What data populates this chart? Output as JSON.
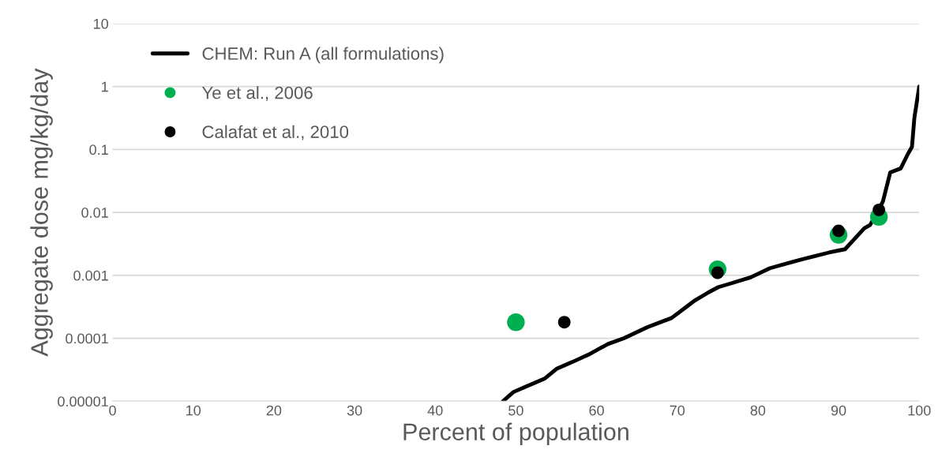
{
  "chart_data": {
    "type": "line",
    "xlabel": "Percent of population",
    "ylabel": "Aggregate dose mg/kg/day",
    "log": "y",
    "grid": "y",
    "legend": "top left",
    "xlim": [
      0,
      100
    ],
    "xticks": [
      0,
      10,
      20,
      30,
      40,
      50,
      60,
      70,
      80,
      90,
      100
    ],
    "ylim": [
      1e-05,
      10
    ],
    "yticks": [
      {
        "value": 1e-05,
        "label": "0.00001"
      },
      {
        "value": 0.0001,
        "label": "0.0001"
      },
      {
        "value": 0.001,
        "label": "0.001"
      },
      {
        "value": 0.01,
        "label": "0.01"
      },
      {
        "value": 0.1,
        "label": "0.1"
      },
      {
        "value": 1,
        "label": "1"
      },
      {
        "value": 10,
        "label": "10"
      }
    ],
    "series": [
      {
        "name": "CHEM: Run A (all formulations)",
        "color": "#000000",
        "marker": "none",
        "x": [
          48.4,
          49.7,
          51.2,
          53.6,
          55.1,
          57.0,
          59.0,
          61.4,
          63.4,
          66.3,
          69.3,
          71.2,
          72.2,
          73.7,
          75.1,
          76.6,
          79.1,
          81.5,
          84.0,
          86.9,
          88.8,
          90.8,
          92.3,
          93.2,
          93.9,
          94.7,
          95.5,
          96.4,
          97.7,
          98.6,
          99.1,
          99.4,
          100
        ],
        "values": [
          1e-05,
          1.4e-05,
          1.7e-05,
          2.3e-05,
          3.3e-05,
          4.2e-05,
          5.5e-05,
          8.1e-05,
          0.0001,
          0.00015,
          0.00021,
          0.00032,
          0.0004,
          0.00052,
          0.00065,
          0.00074,
          0.00093,
          0.0013,
          0.0016,
          0.002,
          0.0023,
          0.0026,
          0.0042,
          0.0056,
          0.0063,
          0.0095,
          0.015,
          0.043,
          0.05,
          0.085,
          0.11,
          0.32,
          1
        ]
      },
      {
        "name": "Ye et al., 2006",
        "type": "scatter",
        "color": "#00b050",
        "marker": "circle",
        "x": [
          50,
          75,
          90,
          95
        ],
        "values": [
          0.00018,
          0.00125,
          0.0044,
          0.0085
        ]
      },
      {
        "name": "Calafat et al., 2010",
        "type": "scatter",
        "color": "#000000",
        "marker": "circle",
        "x": [
          56,
          75,
          90,
          95
        ],
        "values": [
          0.00018,
          0.0011,
          0.0051,
          0.011
        ]
      }
    ]
  }
}
